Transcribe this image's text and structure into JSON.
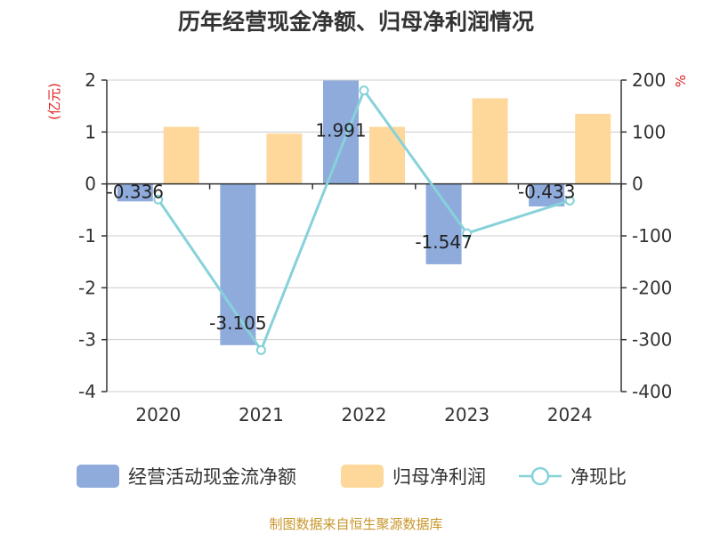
{
  "chart_data": {
    "type": "bar",
    "title": "历年经营现金净额、归母净利润情况",
    "categories": [
      "2020",
      "2021",
      "2022",
      "2023",
      "2024"
    ],
    "series": [
      {
        "name": "经营活动现金流净额",
        "kind": "bar",
        "axis": "left",
        "color": "#8eabdc",
        "values": [
          -0.336,
          -3.105,
          1.991,
          -1.547,
          -0.433
        ]
      },
      {
        "name": "归母净利润",
        "kind": "bar",
        "axis": "left",
        "color": "#fdd89a",
        "values": [
          1.1,
          0.97,
          1.1,
          1.65,
          1.35
        ]
      },
      {
        "name": "净现比",
        "kind": "line",
        "axis": "right",
        "color": "#86d2d9",
        "values": [
          -30,
          -320,
          180,
          -95,
          -32
        ]
      }
    ],
    "data_labels": [
      "-0.336",
      "-3.105",
      "1.991",
      "-1.547",
      "-0.433"
    ],
    "y_left": {
      "unit": "(亿元)",
      "min": -4,
      "max": 2,
      "ticks": [
        "2",
        "1",
        "0",
        "-1",
        "-2",
        "-3",
        "-4"
      ]
    },
    "y_right": {
      "unit": "%",
      "min": -400,
      "max": 200,
      "ticks": [
        "200",
        "100",
        "0",
        "-100",
        "-200",
        "-300",
        "-400"
      ]
    },
    "grid": true,
    "legend_position": "bottom"
  },
  "source": "制图数据来自恒生聚源数据库"
}
